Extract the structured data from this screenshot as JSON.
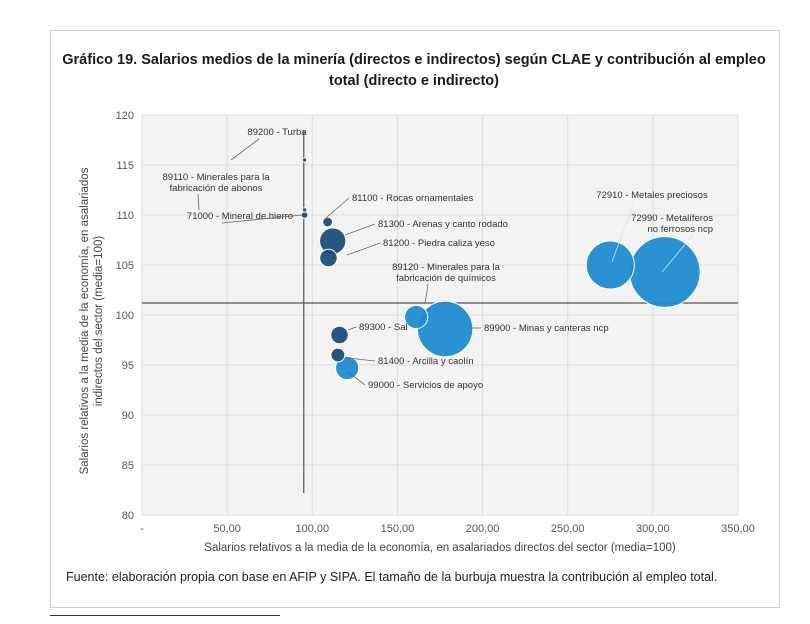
{
  "chart_data": {
    "type": "scatter",
    "subtype": "bubble",
    "title": "Gráfico 19. Salarios medios de la minería (directos e indirectos) según CLAE y contribución al empleo total (directo e indirecto)",
    "xlabel": "Salarios relativos a la media de la economía, en asalariados directos del sector (media=100)",
    "ylabel": "Salarios relativos a la media de la economía, en asalariados indirectos del sector (media=100)",
    "xlim": [
      0,
      350
    ],
    "ylim": [
      80,
      120
    ],
    "x_ticks": [
      "-",
      "50,00",
      "100,00",
      "150,00",
      "200,00",
      "250,00",
      "300,00",
      "350,00"
    ],
    "y_ticks": [
      "80",
      "85",
      "90",
      "95",
      "100",
      "105",
      "110",
      "115",
      "120"
    ],
    "reference_lines": {
      "x": 95,
      "y": 101.2
    },
    "colors": {
      "bubble": "#1f8bd0",
      "bubble_dark": "#1b4e7a",
      "line": "#555555"
    },
    "points": [
      {
        "label": "89200 - Turba",
        "x": 95.5,
        "y": 115.5,
        "size": 0.5,
        "color": "#1b4e7a"
      },
      {
        "label": "89110 - Minerales para la fabricación de abonos",
        "x": 95.5,
        "y": 110.5,
        "size": 0.5,
        "color": "#1b4e7a"
      },
      {
        "label": "71000 - Mineral de hierro",
        "x": 95.5,
        "y": 110.0,
        "size": 1.2,
        "color": "#1b4e7a"
      },
      {
        "label": "81100 - Rocas ornamentales",
        "x": 109,
        "y": 109.3,
        "size": 2.5,
        "color": "#1b4e7a"
      },
      {
        "label": "81300 - Arenas y canto rodado",
        "x": 112,
        "y": 107.4,
        "size": 18,
        "color": "#1b4e7a"
      },
      {
        "label": "81200 - Piedra caliza  yeso",
        "x": 109.5,
        "y": 105.7,
        "size": 8,
        "color": "#1b4e7a"
      },
      {
        "label": "89120 - Minerales para la fabricación de químicos",
        "x": 161,
        "y": 99.8,
        "size": 14,
        "color": "#1f8bd0"
      },
      {
        "label": "89900 - Minas y canteras ncp",
        "x": 178,
        "y": 98.6,
        "size": 80,
        "color": "#1f8bd0"
      },
      {
        "label": "89300 - Sal",
        "x": 116,
        "y": 98.0,
        "size": 8,
        "color": "#1b4e7a"
      },
      {
        "label": "81400 - Arcilla y caolín",
        "x": 115,
        "y": 96.0,
        "size": 5,
        "color": "#1b4e7a"
      },
      {
        "label": "99000 - Servicios de apoyo",
        "x": 120.5,
        "y": 94.7,
        "size": 14,
        "color": "#1f8bd0"
      },
      {
        "label": "72910 - Metales preciosos",
        "x": 275,
        "y": 105.0,
        "size": 60,
        "color": "#1f8bd0"
      },
      {
        "label": "72990 - Metalíferos no ferrosos ncp",
        "x": 307,
        "y": 104.3,
        "size": 130,
        "color": "#1f8bd0"
      }
    ],
    "footer": "Fuente: elaboración propia con base en AFIP y SIPA. El tamaño de la burbuja muestra la contribución al empleo total."
  }
}
